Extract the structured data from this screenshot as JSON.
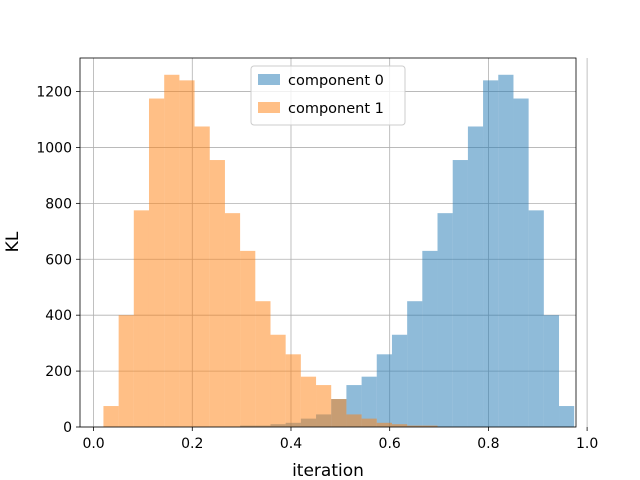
{
  "chart_data": {
    "type": "histogram",
    "xlabel": "iteration",
    "ylabel": "KL",
    "xlim": [
      -0.0275,
      0.9775
    ],
    "ylim": [
      0,
      1320
    ],
    "xticks": [
      0.0,
      0.2,
      0.4,
      0.6,
      0.8,
      1.0
    ],
    "xtick_labels": [
      "0.0",
      "0.2",
      "0.4",
      "0.6",
      "0.8",
      "1.0"
    ],
    "yticks": [
      0,
      200,
      400,
      600,
      800,
      1000,
      1200
    ],
    "ytick_labels": [
      "0",
      "200",
      "400",
      "600",
      "800",
      "1000",
      "1200"
    ],
    "grid": true,
    "legend_position": "top-center",
    "bin_edges": [
      0.02,
      0.0508,
      0.0815,
      0.1123,
      0.1431,
      0.1739,
      0.2046,
      0.2354,
      0.2662,
      0.2969,
      0.3277,
      0.3585,
      0.3892,
      0.42,
      0.4508,
      0.4815,
      0.5123,
      0.5431,
      0.5738,
      0.6046,
      0.6354,
      0.6661,
      0.6969,
      0.7277,
      0.7585,
      0.7892,
      0.82,
      0.8508,
      0.8815,
      0.9123,
      0.9431,
      0.9738
    ],
    "series": [
      {
        "name": "component 0",
        "color": "#1f77b4",
        "alpha": 0.5,
        "values": [
          0,
          0,
          0,
          0,
          0,
          0,
          0,
          0,
          0,
          5,
          5,
          10,
          15,
          30,
          45,
          100,
          150,
          180,
          260,
          330,
          450,
          630,
          765,
          955,
          1075,
          1240,
          1260,
          1175,
          775,
          400,
          75
        ]
      },
      {
        "name": "component 1",
        "color": "#ff7f0e",
        "alpha": 0.5,
        "values": [
          75,
          400,
          775,
          1175,
          1260,
          1240,
          1075,
          955,
          765,
          630,
          450,
          330,
          260,
          180,
          150,
          100,
          45,
          30,
          15,
          10,
          5,
          5,
          0,
          0,
          0,
          0,
          0,
          0,
          0,
          0,
          0
        ]
      }
    ]
  }
}
